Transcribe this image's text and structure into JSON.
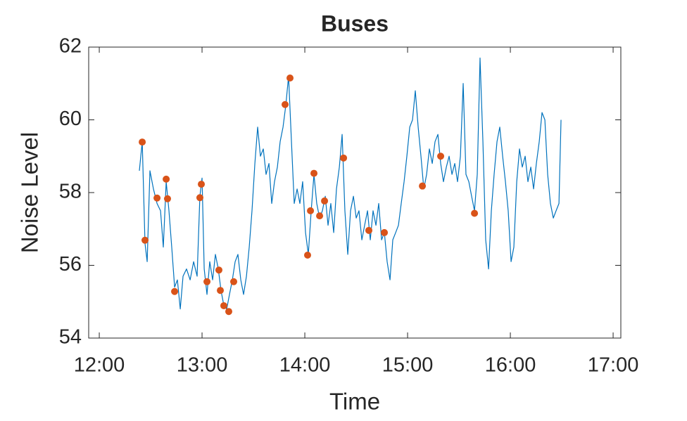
{
  "chart_data": {
    "type": "line",
    "title": "Buses",
    "x_label": "Time",
    "y_label": "Noise Level",
    "xlim": [
      11.897,
      17.075
    ],
    "ylim": [
      54,
      62
    ],
    "xticks": [
      {
        "value": 12,
        "label": "12:00"
      },
      {
        "value": 13,
        "label": "13:00"
      },
      {
        "value": 14,
        "label": "14:00"
      },
      {
        "value": 15,
        "label": "15:00"
      },
      {
        "value": 16,
        "label": "16:00"
      },
      {
        "value": 17,
        "label": "17:00"
      }
    ],
    "yticks": [
      54,
      56,
      58,
      60,
      62
    ],
    "grid": false,
    "series": [
      {
        "type": "line",
        "color": "#0072bd",
        "x": [
          12.39,
          12.418,
          12.445,
          12.466,
          12.493,
          12.527,
          12.562,
          12.596,
          12.623,
          12.651,
          12.678,
          12.705,
          12.733,
          12.76,
          12.788,
          12.815,
          12.849,
          12.884,
          12.918,
          12.952,
          12.979,
          13.0,
          13.021,
          13.048,
          13.075,
          13.103,
          13.13,
          13.158,
          13.185,
          13.212,
          13.24,
          13.267,
          13.295,
          13.322,
          13.349,
          13.377,
          13.404,
          13.432,
          13.459,
          13.486,
          13.514,
          13.541,
          13.568,
          13.596,
          13.623,
          13.651,
          13.678,
          13.705,
          13.733,
          13.76,
          13.788,
          13.815,
          13.842,
          13.87,
          13.897,
          13.925,
          13.952,
          13.979,
          14.007,
          14.034,
          14.062,
          14.089,
          14.116,
          14.144,
          14.171,
          14.199,
          14.226,
          14.253,
          14.281,
          14.308,
          14.336,
          14.363,
          14.39,
          14.418,
          14.445,
          14.473,
          14.5,
          14.527,
          14.555,
          14.582,
          14.61,
          14.637,
          14.664,
          14.692,
          14.719,
          14.747,
          14.774,
          14.801,
          14.829,
          14.856,
          14.884,
          14.911,
          14.938,
          14.966,
          14.993,
          15.021,
          15.048,
          15.075,
          15.103,
          15.13,
          15.158,
          15.185,
          15.212,
          15.24,
          15.267,
          15.295,
          15.322,
          15.349,
          15.377,
          15.404,
          15.432,
          15.459,
          15.486,
          15.514,
          15.541,
          15.568,
          15.596,
          15.623,
          15.651,
          15.678,
          15.705,
          15.733,
          15.76,
          15.788,
          15.815,
          15.842,
          15.87,
          15.897,
          15.925,
          15.952,
          15.979,
          16.007,
          16.034,
          16.062,
          16.089,
          16.116,
          16.144,
          16.171,
          16.199,
          16.226,
          16.253,
          16.281,
          16.308,
          16.336,
          16.363,
          16.39,
          16.418,
          16.445,
          16.473,
          16.493
        ],
        "values": [
          58.6,
          59.4,
          56.6,
          56.1,
          58.6,
          58.1,
          57.7,
          57.5,
          56.5,
          58.3,
          57.5,
          56.5,
          55.4,
          55.6,
          54.8,
          55.7,
          55.9,
          55.6,
          56.1,
          55.7,
          57.9,
          58.4,
          55.9,
          55.2,
          56.1,
          55.6,
          56.3,
          55.9,
          55.3,
          54.9,
          54.8,
          55.2,
          55.6,
          56.1,
          56.3,
          55.6,
          55.2,
          55.7,
          56.5,
          57.5,
          58.8,
          59.8,
          59.0,
          59.2,
          58.5,
          58.8,
          57.7,
          58.3,
          58.7,
          59.4,
          59.8,
          60.4,
          61.2,
          59.4,
          57.7,
          58.1,
          57.7,
          58.3,
          56.9,
          56.3,
          57.5,
          58.5,
          57.7,
          57.3,
          57.5,
          57.9,
          57.1,
          57.7,
          56.9,
          58.1,
          58.7,
          59.6,
          57.5,
          56.3,
          57.5,
          57.9,
          57.3,
          57.5,
          56.7,
          57.1,
          57.5,
          56.7,
          57.5,
          57.1,
          57.7,
          56.7,
          56.9,
          56.1,
          55.6,
          56.7,
          56.9,
          57.1,
          57.7,
          58.3,
          59.0,
          59.8,
          60.0,
          60.8,
          59.8,
          59.0,
          58.1,
          58.5,
          59.2,
          58.8,
          59.4,
          59.6,
          58.8,
          58.3,
          58.7,
          59.0,
          58.5,
          58.8,
          58.3,
          59.0,
          61.0,
          58.5,
          58.3,
          57.9,
          57.5,
          58.5,
          61.7,
          59.4,
          56.7,
          55.9,
          57.5,
          58.5,
          59.4,
          59.8,
          59.0,
          58.3,
          57.5,
          56.1,
          56.5,
          58.3,
          59.2,
          58.7,
          59.0,
          58.3,
          58.7,
          58.1,
          58.8,
          59.4,
          60.2,
          60.0,
          58.5,
          57.7,
          57.3,
          57.5,
          57.7,
          60.0
        ]
      },
      {
        "type": "scatter",
        "color": "#d95319",
        "x": [
          12.418,
          12.445,
          12.562,
          12.651,
          12.664,
          12.733,
          12.993,
          12.979,
          13.048,
          13.164,
          13.178,
          13.212,
          13.26,
          13.308,
          13.808,
          13.856,
          14.027,
          14.055,
          14.089,
          14.144,
          14.192,
          14.377,
          14.623,
          14.774,
          15.144,
          15.322,
          15.651
        ],
        "values": [
          59.39,
          56.69,
          57.85,
          58.37,
          57.83,
          55.28,
          58.23,
          57.86,
          55.55,
          55.87,
          55.31,
          54.89,
          54.73,
          55.55,
          60.42,
          61.15,
          56.28,
          57.5,
          58.53,
          57.36,
          57.77,
          58.95,
          56.96,
          56.9,
          58.18,
          59.0,
          57.43
        ]
      }
    ]
  }
}
